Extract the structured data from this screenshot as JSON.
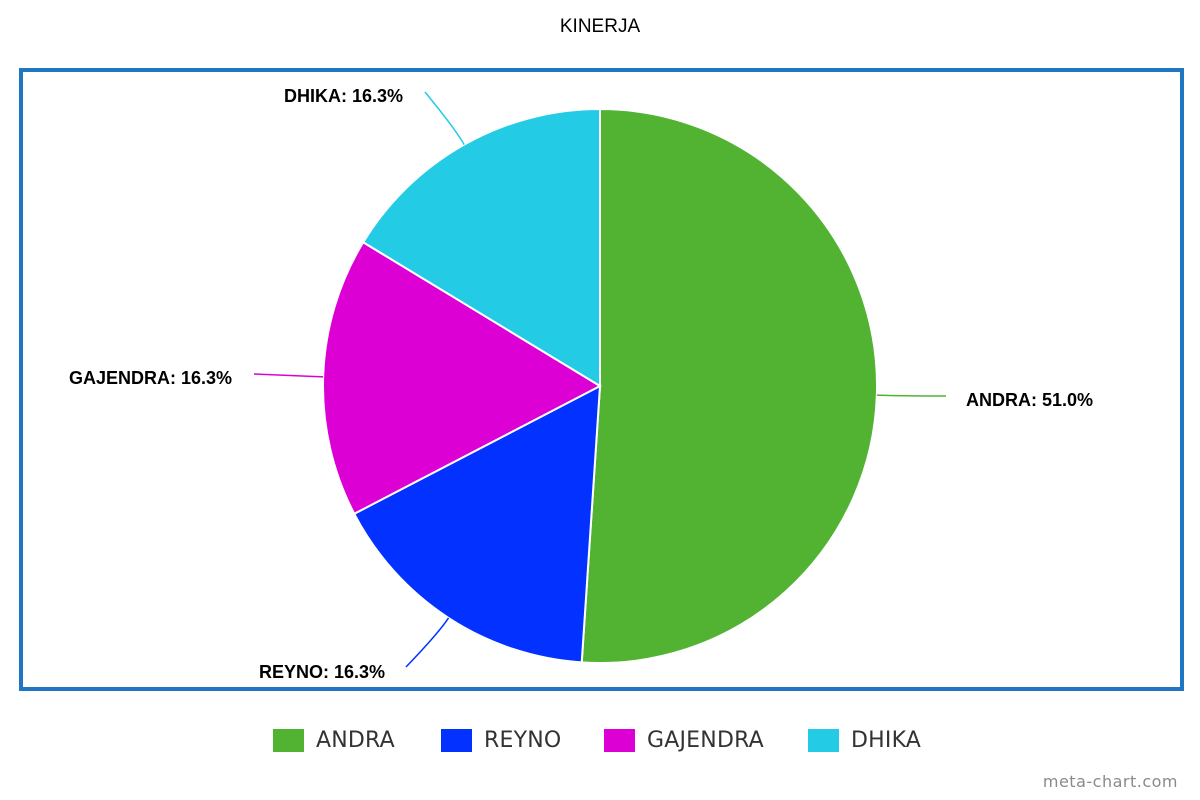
{
  "chart_data": {
    "type": "pie",
    "title": "KINERJA",
    "slices": [
      {
        "label": "ANDRA",
        "value": 51.0,
        "display": "ANDRA: 51.0%",
        "color": "#52b333"
      },
      {
        "label": "REYNO",
        "value": 16.3,
        "display": "REYNO: 16.3%",
        "color": "#0331ff"
      },
      {
        "label": "GAJENDRA",
        "value": 16.3,
        "display": "GAJENDRA: 16.3%",
        "color": "#dd00d5"
      },
      {
        "label": "DHIKA",
        "value": 16.3,
        "display": "DHIKA: 16.3%",
        "color": "#24cbe5"
      }
    ],
    "legend_position": "bottom",
    "frame_color": "#1f76c2"
  },
  "watermark": "meta-chart.com"
}
